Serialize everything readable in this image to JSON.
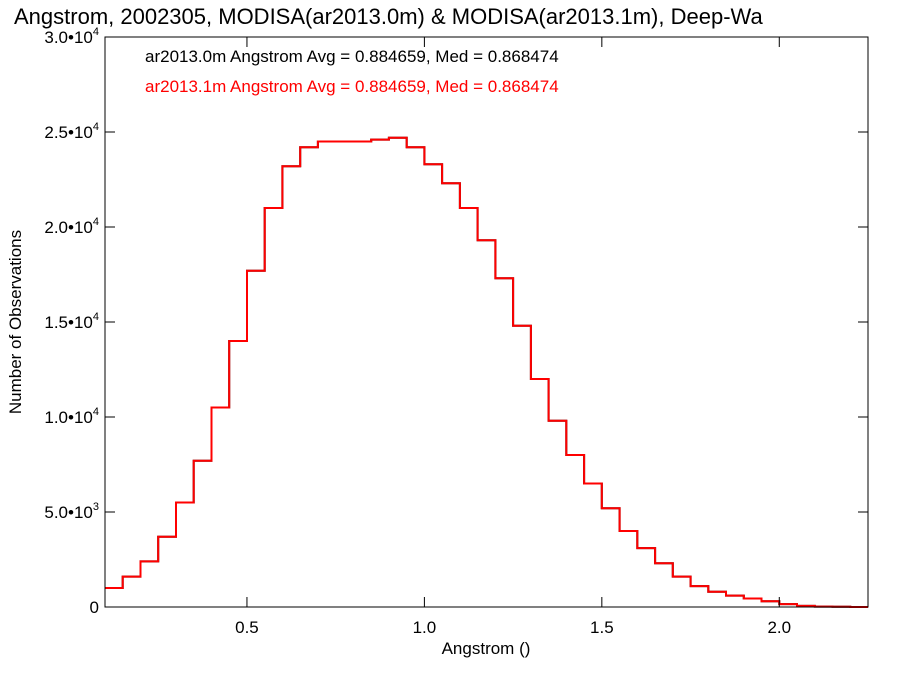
{
  "chart_data": {
    "type": "line",
    "title": "Angstrom, 2002305, MODISA(ar2013.0m) & MODISA(ar2013.1m), Deep-Wa",
    "xlabel": "Angstrom ()",
    "ylabel": "Number of Observations",
    "xlim": [
      0.1,
      2.25
    ],
    "ylim": [
      0,
      30000
    ],
    "grid": false,
    "style": "step",
    "x_ticks": [
      {
        "value": 0.5,
        "label": "0.5"
      },
      {
        "value": 1.0,
        "label": "1.0"
      },
      {
        "value": 1.5,
        "label": "1.5"
      },
      {
        "value": 2.0,
        "label": "2.0"
      }
    ],
    "y_ticks": [
      {
        "value": 0,
        "mant": "0",
        "exp": ""
      },
      {
        "value": 5000,
        "mant": "5.0•10",
        "exp": "3"
      },
      {
        "value": 10000,
        "mant": "1.0•10",
        "exp": "4"
      },
      {
        "value": 15000,
        "mant": "1.5•10",
        "exp": "4"
      },
      {
        "value": 20000,
        "mant": "2.0•10",
        "exp": "4"
      },
      {
        "value": 25000,
        "mant": "2.5•10",
        "exp": "4"
      },
      {
        "value": 30000,
        "mant": "3.0•10",
        "exp": "4"
      }
    ],
    "annotations": [
      {
        "text": "ar2013.0m Angstrom Avg = 0.884659, Med = 0.868474",
        "color": "#000000"
      },
      {
        "text": "ar2013.1m Angstrom Avg = 0.884659, Med = 0.868474",
        "color": "#ff0000"
      }
    ],
    "series": [
      {
        "color": "#000000",
        "x": [
          0.1,
          0.15,
          0.2,
          0.25,
          0.3,
          0.35,
          0.4,
          0.45,
          0.5,
          0.55,
          0.6,
          0.65,
          0.7,
          0.75,
          0.8,
          0.85,
          0.9,
          0.95,
          1.0,
          1.05,
          1.1,
          1.15,
          1.2,
          1.25,
          1.3,
          1.35,
          1.4,
          1.45,
          1.5,
          1.55,
          1.6,
          1.65,
          1.7,
          1.75,
          1.8,
          1.85,
          1.9,
          1.95,
          2.0,
          2.05,
          2.1,
          2.15,
          2.2,
          2.25
        ],
        "y": [
          1000,
          1600,
          2400,
          3700,
          5500,
          7700,
          10500,
          14000,
          17700,
          21000,
          23200,
          24200,
          24500,
          24500,
          24500,
          24600,
          24700,
          24200,
          23300,
          22300,
          21000,
          19300,
          17300,
          14800,
          12000,
          9800,
          8000,
          6500,
          5200,
          4000,
          3100,
          2300,
          1600,
          1100,
          800,
          600,
          450,
          300,
          150,
          60,
          20,
          10,
          0,
          0
        ]
      },
      {
        "color": "#ff0000",
        "x": [
          0.1,
          0.15,
          0.2,
          0.25,
          0.3,
          0.35,
          0.4,
          0.45,
          0.5,
          0.55,
          0.6,
          0.65,
          0.7,
          0.75,
          0.8,
          0.85,
          0.9,
          0.95,
          1.0,
          1.05,
          1.1,
          1.15,
          1.2,
          1.25,
          1.3,
          1.35,
          1.4,
          1.45,
          1.5,
          1.55,
          1.6,
          1.65,
          1.7,
          1.75,
          1.8,
          1.85,
          1.9,
          1.95,
          2.0,
          2.05,
          2.1,
          2.15,
          2.2,
          2.25
        ],
        "y": [
          1000,
          1600,
          2400,
          3700,
          5500,
          7700,
          10500,
          14000,
          17700,
          21000,
          23200,
          24200,
          24500,
          24500,
          24500,
          24600,
          24700,
          24200,
          23300,
          22300,
          21000,
          19300,
          17300,
          14800,
          12000,
          9800,
          8000,
          6500,
          5200,
          4000,
          3100,
          2300,
          1600,
          1100,
          800,
          600,
          450,
          300,
          150,
          60,
          20,
          10,
          0,
          0
        ]
      }
    ]
  }
}
